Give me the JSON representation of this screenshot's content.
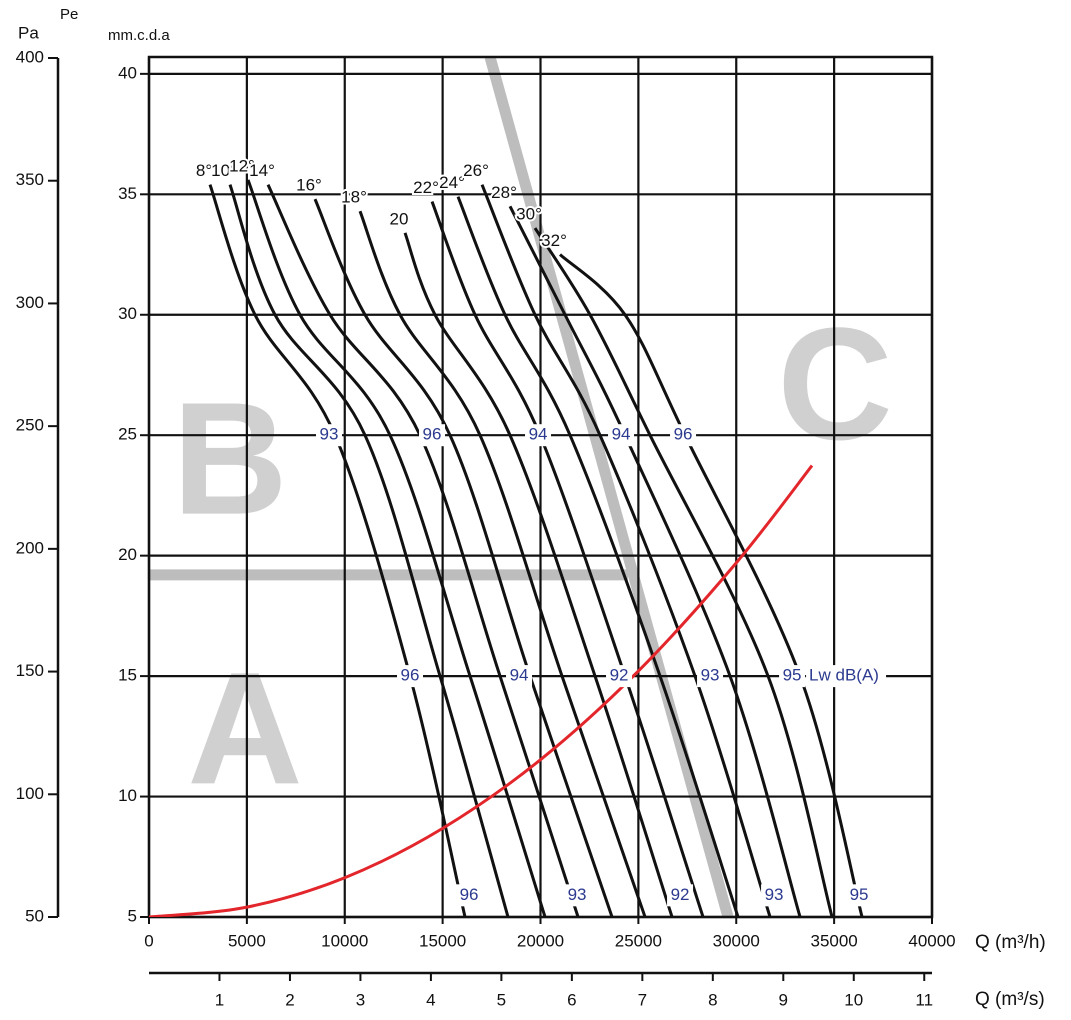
{
  "chart_data": {
    "type": "line",
    "xlabel": "Q (m³/h)",
    "ylabel": "mm.c.d.a",
    "y2label": "Pa",
    "y2title": "Pe",
    "x2label": "Q (m³/s)",
    "xlim": [
      0,
      40000
    ],
    "xticks": [
      0,
      5000,
      10000,
      15000,
      20000,
      25000,
      30000,
      35000,
      40000
    ],
    "ylim": [
      5,
      40.7
    ],
    "yticks": [
      5,
      10,
      15,
      20,
      25,
      30,
      35,
      40
    ],
    "y2lim": [
      50,
      400
    ],
    "y2ticks": [
      50,
      100,
      150,
      200,
      250,
      300,
      350,
      400
    ],
    "x2lim": [
      0,
      11.11
    ],
    "x2ticks": [
      1,
      2,
      3,
      4,
      5,
      6,
      7,
      8,
      9,
      10,
      11
    ],
    "grid": true,
    "series": [
      {
        "name": "8°",
        "color": "#111111",
        "x": [
          3116,
          5416,
          9503,
          13334,
          16144
        ],
        "values": [
          35.4,
          30,
          25,
          15,
          5
        ]
      },
      {
        "name": "10°",
        "color": "#111111",
        "x": [
          4138,
          6437,
          11035,
          14867,
          18341
        ],
        "values": [
          35.4,
          30,
          25,
          15,
          5
        ]
      },
      {
        "name": "12°",
        "color": "#111111",
        "x": [
          5058,
          7715,
          12313,
          16400,
          20232
        ],
        "values": [
          35.6,
          30,
          25,
          15,
          5
        ]
      },
      {
        "name": "14°",
        "color": "#111111",
        "x": [
          6080,
          9247,
          13845,
          17933,
          21918
        ],
        "values": [
          35.4,
          30,
          25,
          15,
          5
        ]
      },
      {
        "name": "16°",
        "color": "#111111",
        "x": [
          8481,
          11035,
          15378,
          19465,
          23655
        ],
        "values": [
          34.8,
          30,
          25,
          15,
          5
        ]
      },
      {
        "name": "18°",
        "color": "#111111",
        "x": [
          10780,
          12824,
          16911,
          21100,
          25341
        ],
        "values": [
          34.3,
          30,
          25,
          15,
          5
        ]
      },
      {
        "name": "20",
        "color": "#111111",
        "x": [
          13079,
          14612,
          18443,
          22786,
          26720
        ],
        "values": [
          33.4,
          30,
          25,
          15,
          5
        ]
      },
      {
        "name": "22°",
        "color": "#111111",
        "x": [
          14459,
          16656,
          19976,
          24318,
          28304
        ],
        "values": [
          34.7,
          30,
          25,
          15,
          5
        ]
      },
      {
        "name": "24°",
        "color": "#111111",
        "x": [
          15787,
          18188,
          21509,
          26107,
          30092
        ],
        "values": [
          34.9,
          30,
          25,
          15,
          5
        ]
      },
      {
        "name": "26°",
        "color": "#111111",
        "x": [
          17013,
          19720,
          23041,
          27895,
          31727
        ],
        "values": [
          35.4,
          30,
          25,
          15,
          5
        ]
      },
      {
        "name": "28°",
        "color": "#111111",
        "x": [
          18443,
          21253,
          24318,
          29683,
          33260
        ],
        "values": [
          34.5,
          30,
          25,
          15,
          5
        ]
      },
      {
        "name": "30°",
        "color": "#111111",
        "x": [
          19720,
          22530,
          25595,
          31625,
          34895
        ],
        "values": [
          33.6,
          30,
          25,
          15,
          5
        ]
      },
      {
        "name": "32°",
        "color": "#111111",
        "x": [
          20997,
          24318,
          27384,
          33260,
          36427
        ],
        "values": [
          32.5,
          30,
          25,
          15,
          5
        ]
      }
    ],
    "system_curve": {
      "color": "#e3262b",
      "x": [
        0,
        5000,
        10000,
        15000,
        20000,
        25000,
        30000,
        33870
      ],
      "values": [
        5,
        5.41,
        6.63,
        8.68,
        11.53,
        15.21,
        19.7,
        23.74
      ]
    },
    "sound_unit": "Lw dB(A)",
    "sound_color": "#2b3a8f",
    "sound_labels": [
      {
        "value": 93,
        "x": 9196,
        "y": 25
      },
      {
        "value": 96,
        "x": 14458,
        "y": 25
      },
      {
        "value": 94,
        "x": 19874,
        "y": 25
      },
      {
        "value": 94,
        "x": 24114,
        "y": 25
      },
      {
        "value": 96,
        "x": 27282,
        "y": 25
      },
      {
        "value": 96,
        "x": 13334,
        "y": 15
      },
      {
        "value": 94,
        "x": 18903,
        "y": 15
      },
      {
        "value": 92,
        "x": 24012,
        "y": 15
      },
      {
        "value": 93,
        "x": 28661,
        "y": 15
      },
      {
        "value": 95,
        "x": 32851,
        "y": 15
      },
      {
        "value": 96,
        "x": 16349,
        "y": 5.9
      },
      {
        "value": 93,
        "x": 21867,
        "y": 5.9
      },
      {
        "value": 92,
        "x": 27129,
        "y": 5.9
      },
      {
        "value": 93,
        "x": 31931,
        "y": 5.9
      },
      {
        "value": 95,
        "x": 36274,
        "y": 5.9
      }
    ],
    "zone_color": "#bdbdbd",
    "zone_boundaries": [
      {
        "x": [
          0,
          24470
        ],
        "values": [
          19.2,
          19.2
        ]
      },
      {
        "x": [
          17420,
          29580
        ],
        "values": [
          40.7,
          5
        ]
      }
    ],
    "zones": [
      {
        "label": "A",
        "x": 4905,
        "y": 12.3
      },
      {
        "label": "B",
        "x": 4138,
        "y": 23.5
      },
      {
        "label": "C",
        "x": 35048,
        "y": 26.6
      }
    ]
  }
}
